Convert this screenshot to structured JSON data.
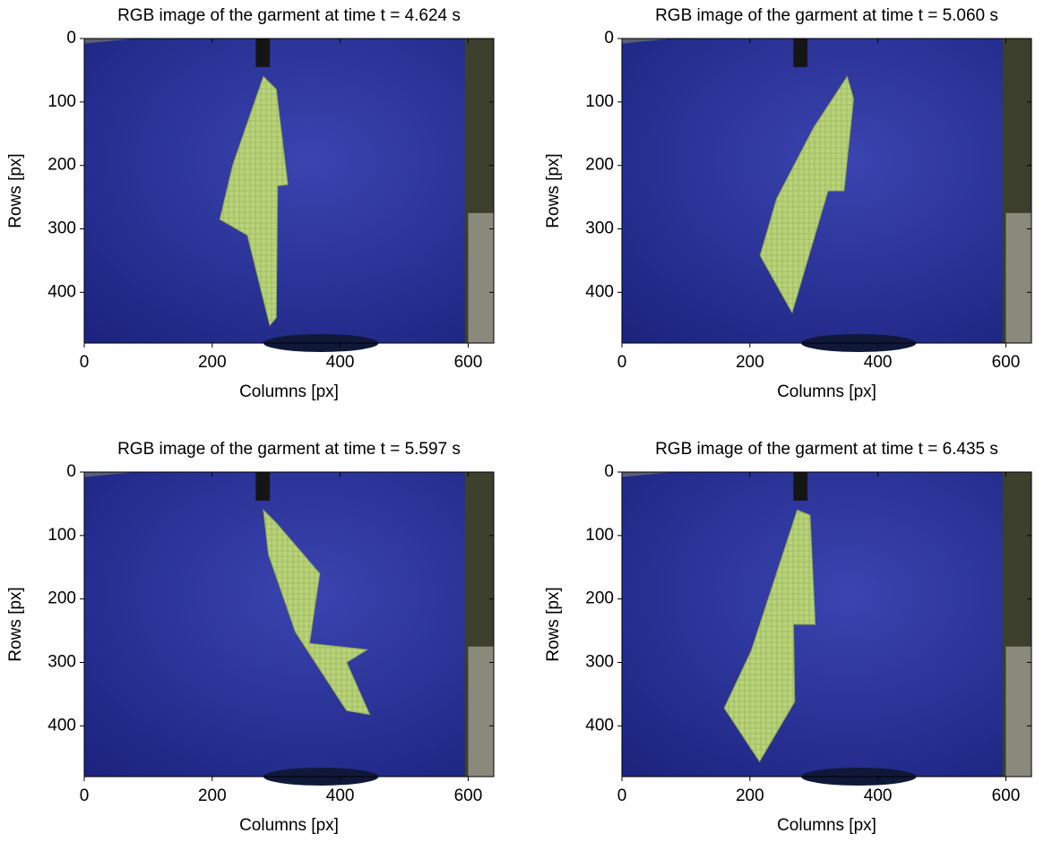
{
  "chart_data": [
    {
      "type": "image",
      "title": "RGB image of the garment at time t = 4.624 s",
      "x_label": "Columns [px]",
      "y_label": "Rows [px]",
      "xlim": [
        0,
        640
      ],
      "ylim": [
        480,
        0
      ],
      "xticks": [
        0,
        200,
        400,
        600
      ],
      "yticks": [
        0,
        100,
        200,
        300,
        400
      ]
    },
    {
      "type": "image",
      "title": "RGB image of the garment at time t = 5.060 s",
      "x_label": "Columns [px]",
      "y_label": "Rows [px]",
      "xlim": [
        0,
        640
      ],
      "ylim": [
        480,
        0
      ],
      "xticks": [
        0,
        200,
        400,
        600
      ],
      "yticks": [
        0,
        100,
        200,
        300,
        400
      ]
    },
    {
      "type": "image",
      "title": "RGB image of the garment at time t = 5.597 s",
      "x_label": "Columns [px]",
      "y_label": "Rows [px]",
      "xlim": [
        0,
        640
      ],
      "ylim": [
        480,
        0
      ],
      "xticks": [
        0,
        200,
        400,
        600
      ],
      "yticks": [
        0,
        100,
        200,
        300,
        400
      ]
    },
    {
      "type": "image",
      "title": "RGB image of the garment at time t = 6.435 s",
      "x_label": "Columns [px]",
      "y_label": "Rows [px]",
      "xlim": [
        0,
        640
      ],
      "ylim": [
        480,
        0
      ],
      "xticks": [
        0,
        200,
        400,
        600
      ],
      "yticks": [
        0,
        100,
        200,
        300,
        400
      ]
    }
  ]
}
